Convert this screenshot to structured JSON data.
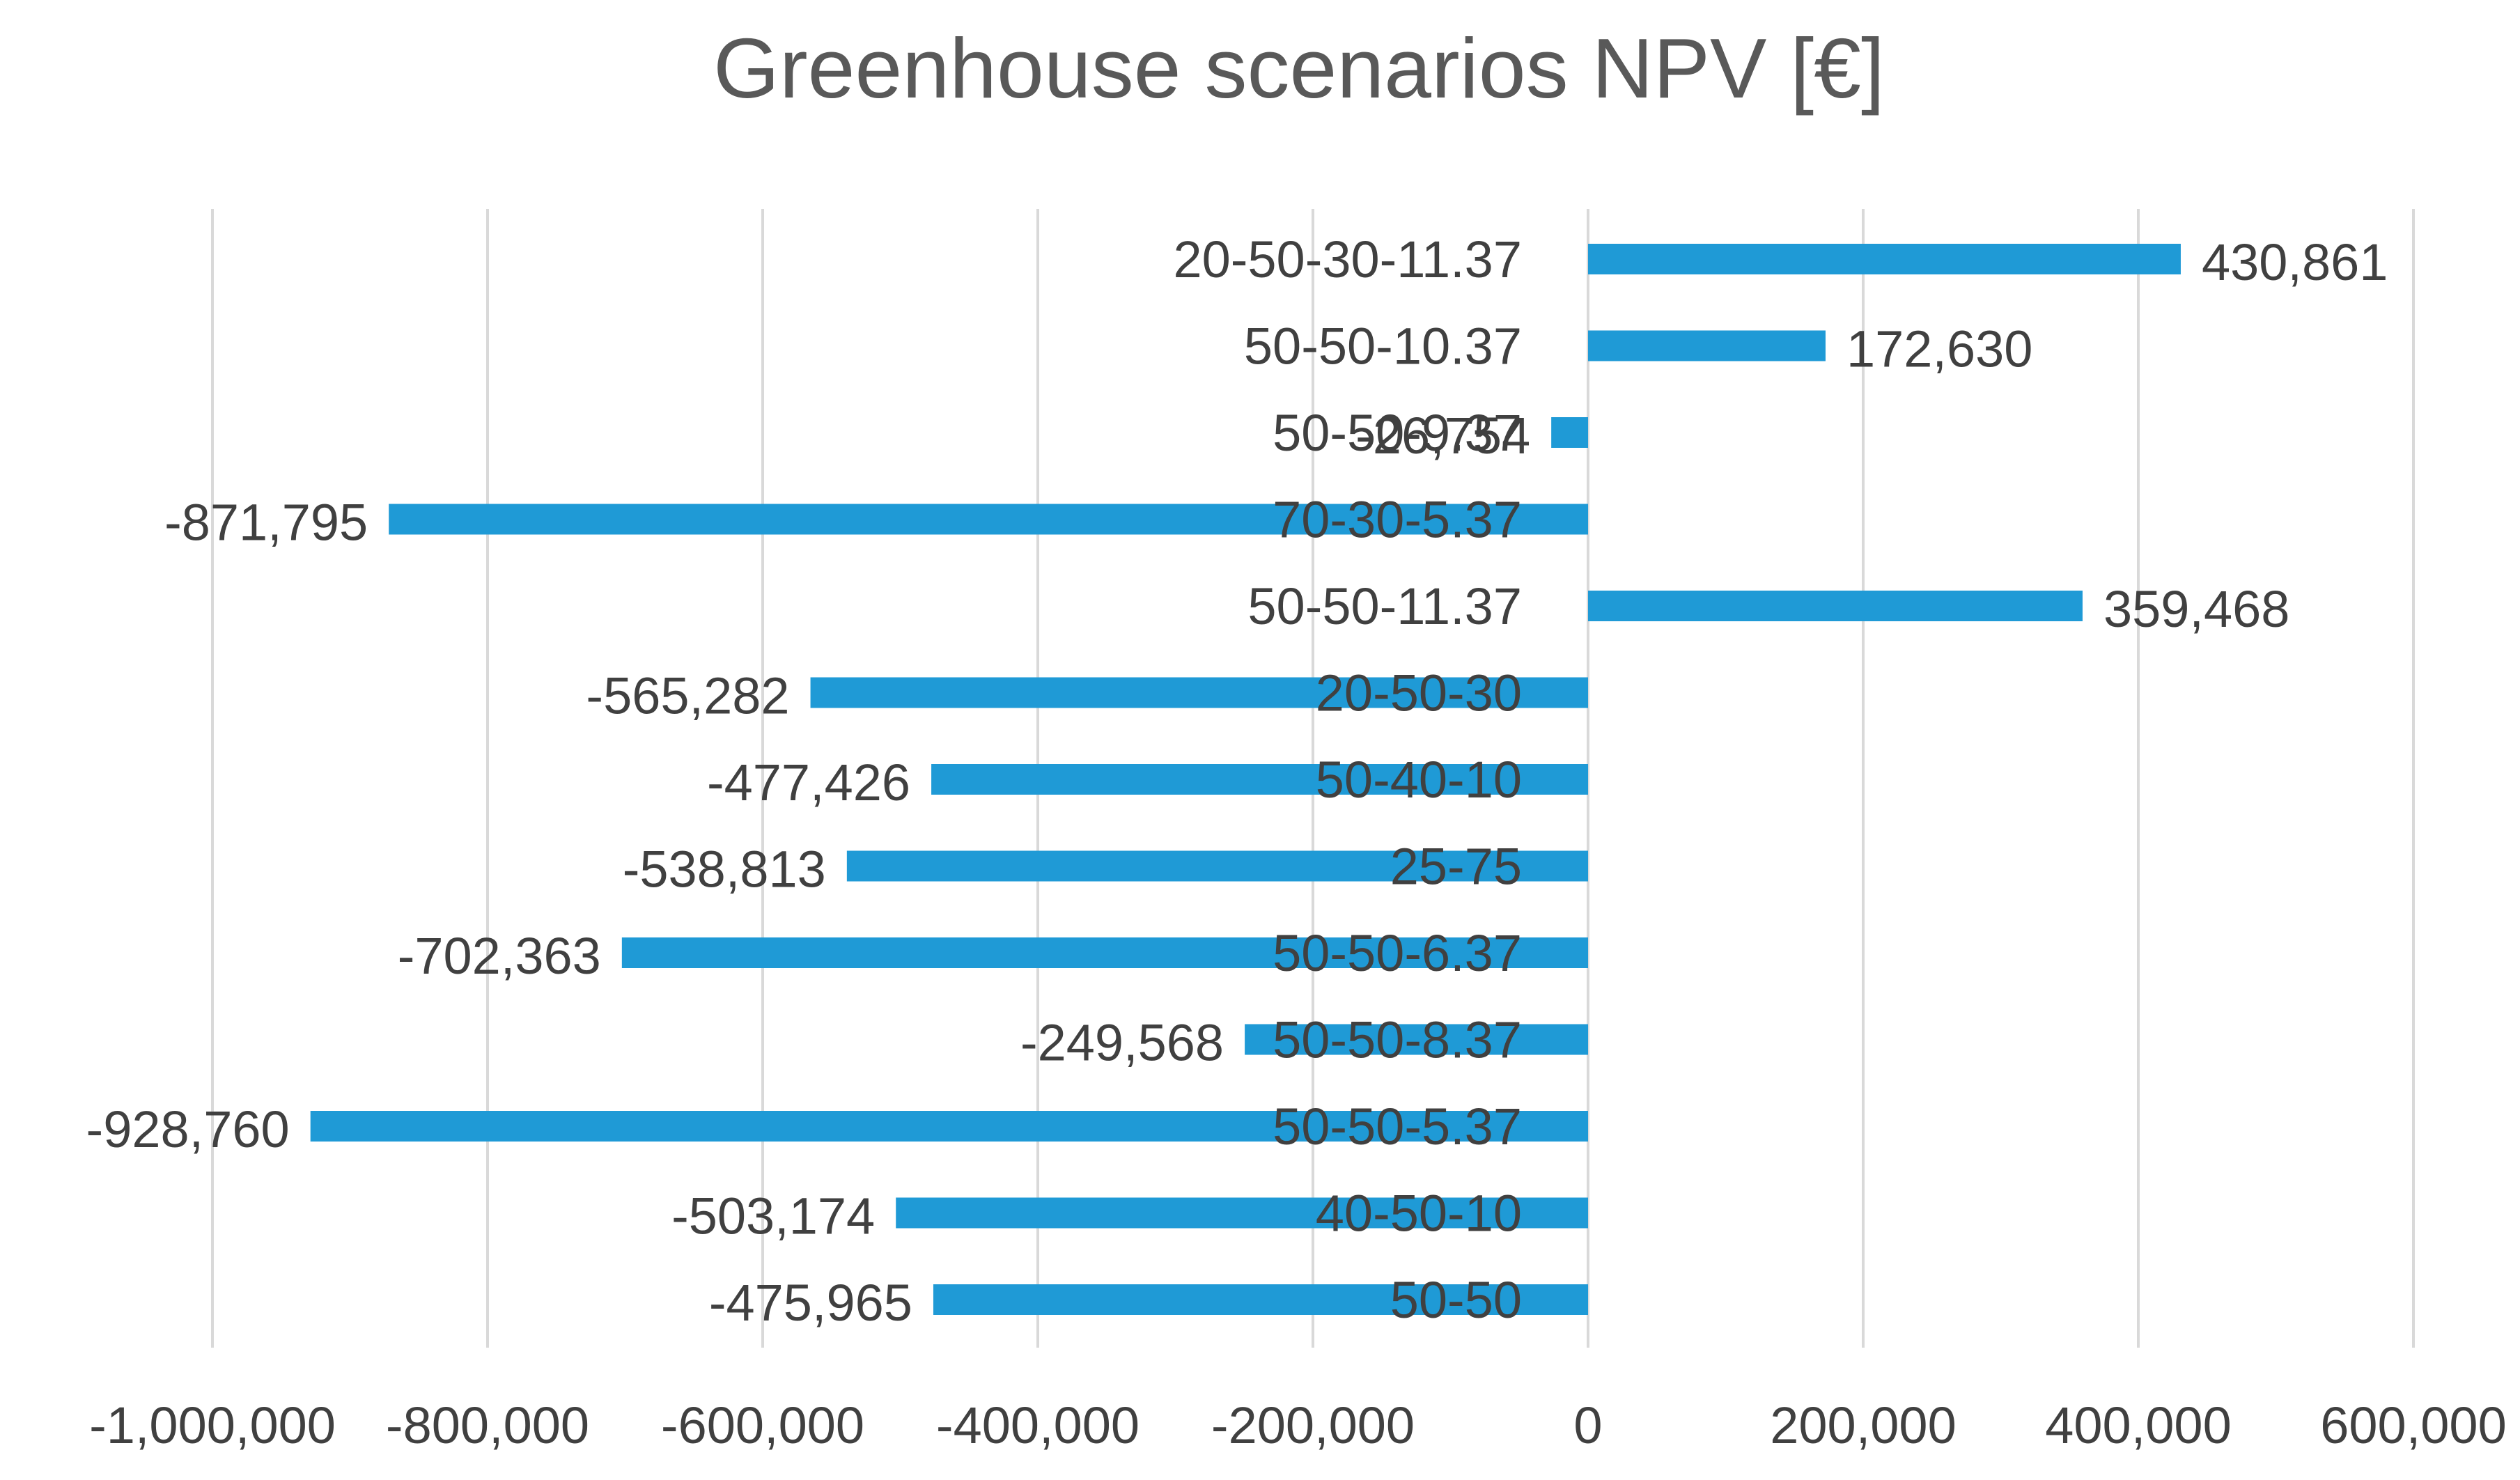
{
  "chart_data": {
    "type": "bar",
    "orientation": "horizontal",
    "title": "Greenhouse scenarios NPV [€]",
    "xlabel": "",
    "ylabel": "",
    "xlim": [
      -1000000,
      600000
    ],
    "x_ticks": [
      -1000000,
      -800000,
      -600000,
      -400000,
      -200000,
      0,
      200000,
      400000,
      600000
    ],
    "x_tick_labels": [
      "-1,000,000",
      "-800,000",
      "-600,000",
      "-400,000",
      "-200,000",
      "0",
      "200,000",
      "400,000",
      "600,000"
    ],
    "grid": "vertical",
    "legend": "none",
    "bar_color": "#1f9ad6",
    "categories": [
      "20-50-30-11.37",
      "50-50-10.37",
      "50-50-9.37",
      "70-30-5.37",
      "50-50-11.37",
      "20-50-30",
      "50-40-10",
      "25-75",
      "50-50-6.37",
      "50-50-8.37",
      "50-50-5.37",
      "40-50-10",
      "50-50"
    ],
    "values": [
      430861,
      172630,
      -26754,
      -871795,
      359468,
      -565282,
      -477426,
      -538813,
      -702363,
      -249568,
      -928760,
      -503174,
      -475965
    ],
    "data_labels": [
      "430,861",
      "172,630",
      "-26,754",
      "-871,795",
      "359,468",
      "-565,282",
      "-477,426",
      "-538,813",
      "-702,363",
      "-249,568",
      "-928,760",
      "-503,174",
      "-475,965"
    ]
  }
}
